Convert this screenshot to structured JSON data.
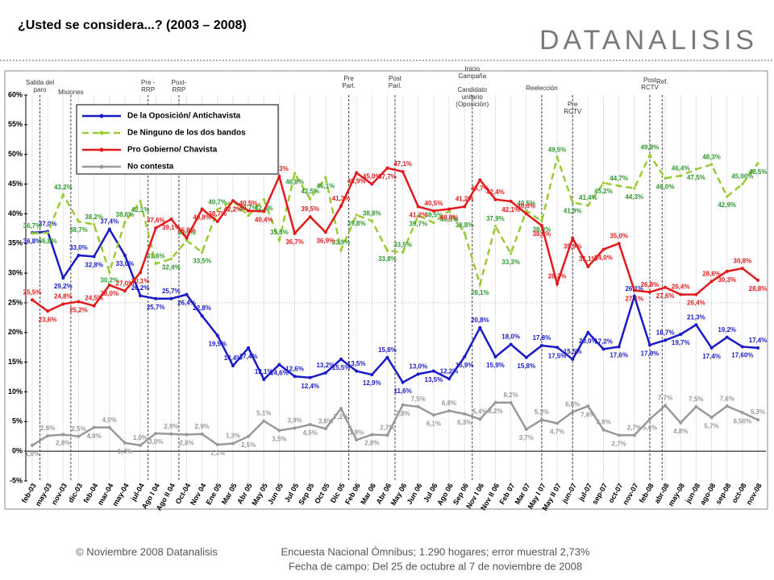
{
  "chart_data": {
    "type": "line",
    "title": "¿Usted se considera...? (2003 – 2008)",
    "logo": "DATANALISIS",
    "categories": [
      "feb-03",
      "may-03",
      "nov-03",
      "dic-03",
      "feb-04",
      "mar-04",
      "may-04",
      "jul-04",
      "Ago I 04",
      "Ago II 04",
      "Oct-04",
      "Nov 04",
      "Ene 05",
      "Mar 05",
      "Abr 05",
      "May 05",
      "Jun 05",
      "Jul 05",
      "Sep 05",
      "Oct 05",
      "Dic 05",
      "Feb 06",
      "Mar 06",
      "Abr 06",
      "May 06",
      "Jun 06",
      "Jul 06",
      "Ago 06",
      "Sep 06",
      "Nov I 06",
      "Nov II 06",
      "Feb 07",
      "Mar 07",
      "May I 07",
      "May II 07",
      "jun-07",
      "jul-07",
      "sep-07",
      "oct-07",
      "nov-07",
      "feb-08",
      "abr-08",
      "may-08",
      "jun-08",
      "ago-08",
      "sep-08",
      "oct-08",
      "nov-08"
    ],
    "ylim": [
      -5,
      60
    ],
    "yticks": [
      {
        "value": -5,
        "label": "-5%"
      },
      {
        "value": 0,
        "label": "0%"
      },
      {
        "value": 5,
        "label": "5%"
      },
      {
        "value": 10,
        "label": "10%"
      },
      {
        "value": 15,
        "label": "15%"
      },
      {
        "value": 20,
        "label": "20%"
      },
      {
        "value": 25,
        "label": "25%"
      },
      {
        "value": 30,
        "label": "30%"
      },
      {
        "value": 35,
        "label": "35%"
      },
      {
        "value": 40,
        "label": "40%"
      },
      {
        "value": 45,
        "label": "45%"
      },
      {
        "value": 50,
        "label": "50%"
      },
      {
        "value": 55,
        "label": "55%"
      },
      {
        "value": 60,
        "label": "60%"
      }
    ],
    "series": [
      {
        "name": "De la Oposición/ Antichavista",
        "color": "#1a1ac8",
        "dashed": false,
        "values": [
          36.8,
          37.0,
          29.2,
          33.0,
          32.8,
          37.4,
          33.0,
          26.2,
          25.7,
          25.7,
          26.4,
          22.8,
          19.5,
          14.4,
          17.4,
          12.1,
          14.6,
          12.6,
          12.4,
          13.2,
          15.5,
          13.5,
          12.9,
          15.8,
          11.6,
          13.0,
          13.5,
          12.2,
          15.9,
          20.8,
          15.9,
          18.0,
          15.8,
          17.8,
          17.5,
          15.5,
          20.0,
          17.2,
          17.6,
          26.1,
          17.9,
          18.7,
          19.7,
          21.3,
          17.4,
          19.2,
          17.6,
          17.4
        ],
        "value_labels": [
          "36,8%",
          "37,0%",
          "29,2%",
          "33,0%",
          "32,8%",
          "37,4%",
          "33,0%",
          "26,2%",
          "25,7%",
          "25,7%",
          "26,4%",
          "22,8%",
          "19,5%",
          "14,4%",
          "17,4%",
          "12,1%",
          "14,6%",
          "12,6%",
          "12,4%",
          "13,2%",
          "15,5%",
          "13,5%",
          "12,9%",
          "15,8%",
          "11,6%",
          "13,0%",
          "13,5%",
          "12,2%",
          "15,9%",
          "20,8%",
          "15,9%",
          "18,0%",
          "15,8%",
          "17,8%",
          "17,5%",
          "15,5%",
          "20,0%",
          "17,2%",
          "17,6%",
          "26,1%",
          "17,9%",
          "18,7%",
          "19,7%",
          "21,3%",
          "17,4%",
          "19,2%",
          "17,60%",
          "17,4%"
        ]
      },
      {
        "name": "De Ninguno de los dos bandos",
        "color": "#99cc33",
        "dashed": true,
        "values": [
          36.7,
          36.8,
          43.2,
          38.7,
          38.2,
          30.2,
          38.6,
          42.1,
          31.6,
          32.4,
          35.5,
          33.5,
          40.7,
          42.2,
          39.7,
          42.4,
          35.6,
          46.8,
          42.5,
          46.1,
          33.9,
          39.8,
          38.8,
          33.8,
          33.5,
          39.7,
          38.5,
          40.5,
          36.8,
          28.1,
          37.9,
          33.3,
          40.5,
          38.8,
          49.5,
          41.9,
          41.4,
          45.2,
          44.7,
          44.3,
          49.9,
          46.0,
          46.4,
          47.5,
          48.3,
          42.9,
          45.0,
          48.5
        ],
        "value_labels": [
          "36,7%",
          "36,8%",
          "43,2%",
          "38,7%",
          "38,2%",
          "30,2%",
          "38,6%",
          "42,1%",
          "31,6%",
          "32,4%",
          "35,5%",
          "33,5%",
          "40,7%",
          "42,2%",
          "39,7%",
          "42,4%",
          "35,6%",
          "46,8%",
          "42,5%",
          "46,1%",
          "33,9%",
          "39,8%",
          "38,8%",
          "33,8%",
          "33,5%",
          "39,7%",
          "38,5%",
          "40,5%",
          "36,8%",
          "28,1%",
          "37,9%",
          "33,3%",
          "40,5%",
          "38,8%",
          "49,5%",
          "41,9%",
          "41,4%",
          "45,2%",
          "44,7%",
          "44,3%",
          "49,9%",
          "46,0%",
          "46,4%",
          "47,5%",
          "48,3%",
          "42,9%",
          "45,00%",
          "48,5%"
        ]
      },
      {
        "name": "Pro Gobierno/ Chavista",
        "color": "#e31a1c",
        "dashed": false,
        "values": [
          25.5,
          23.6,
          24.8,
          25.2,
          24.5,
          28.0,
          27.0,
          30.1,
          37.6,
          39.1,
          35.9,
          40.8,
          38.7,
          42.2,
          40.5,
          40.4,
          46.3,
          36.7,
          39.5,
          36.9,
          41.3,
          46.9,
          45.0,
          47.7,
          47.1,
          41.2,
          40.5,
          40.8,
          41.2,
          45.7,
          42.4,
          42.1,
          40.0,
          38.0,
          28.2,
          35.9,
          31.1,
          34.0,
          35.0,
          27.1,
          26.8,
          27.6,
          26.4,
          26.4,
          28.6,
          30.3,
          30.8,
          28.8
        ],
        "value_labels": [
          "25,5%",
          "23,6%",
          "24,8%",
          "25,2%",
          "24,5%",
          "28,0%",
          "27,0%",
          "30,1%",
          "37,6%",
          "39,1%",
          "35,9%",
          "40,8%",
          "38,7%",
          "42,2%",
          "40,5%",
          "40,4%",
          "46,3%",
          "36,7%",
          "39,5%",
          "36,9%",
          "41,3%",
          "46,9%",
          "45,0%",
          "47,7%",
          "47,1%",
          "41,2%",
          "40,5%",
          "40,8%",
          "41,2%",
          "45,7%",
          "42,4%",
          "42,1%",
          "40,0%",
          "38,0%",
          "28,2%",
          "35,9%",
          "31,1%",
          "34,0%",
          "35,0%",
          "27,1%",
          "26,8%",
          "27,6%",
          "26,4%",
          "26,4%",
          "28,6%",
          "30,3%",
          "30,8%",
          "28,8%"
        ]
      },
      {
        "name": "No contesta",
        "color": "#999999",
        "dashed": false,
        "values": [
          1.0,
          2.6,
          2.8,
          2.5,
          4.0,
          4.0,
          1.4,
          1.0,
          3.0,
          2.9,
          2.8,
          2.9,
          1.1,
          1.3,
          2.5,
          5.1,
          3.5,
          3.9,
          4.5,
          3.8,
          7.2,
          1.9,
          2.8,
          2.7,
          7.8,
          7.5,
          6.1,
          6.8,
          6.3,
          5.4,
          8.2,
          8.2,
          3.7,
          5.3,
          4.7,
          6.6,
          7.6,
          3.6,
          2.7,
          2.7,
          5.4,
          7.7,
          4.8,
          7.5,
          5.7,
          7.6,
          6.5,
          5.3
        ],
        "value_labels": [
          "1,0%",
          "2,6%",
          "2,8%",
          "2,5%",
          "4,0%",
          "4,0%",
          "1,4%",
          "1,0%",
          "3,0%",
          "2,9%",
          "2,8%",
          "2,9%",
          "1,1%",
          "1,3%",
          "2,5%",
          "5,1%",
          "3,5%",
          "3,9%",
          "4,5%",
          "3,8%",
          "7,2%",
          "1,9%",
          "2,8%",
          "2,7%",
          "7,8%",
          "7,5%",
          "6,1%",
          "6,8%",
          "6,3%",
          "5,4%",
          "8,2%",
          "8,2%",
          "3,7%",
          "5,3%",
          "4,7%",
          "6,6%",
          "7,6%",
          "3,6%",
          "2,7%",
          "2,7%",
          "5,4%",
          "7,7%",
          "4,8%",
          "7,5%",
          "5,7%",
          "7,6%",
          "6,50%",
          "5,3%"
        ]
      }
    ],
    "annotations": [
      "Salida del paro",
      "Misiones",
      "Pre - RRP",
      "Post- RRP",
      "Pre Parl.",
      "Post Parl.",
      "Inicio Campaña",
      "Candidato unitario (Oposición)",
      "Reelección",
      "Pre RCTV",
      "Post RCTV",
      "Ref."
    ],
    "footer": {
      "copyright": "© Noviembre 2008  Datanalisis",
      "source": "Encuesta Nacional Ómnibus; 1.290 hogares; error muestral  2,73%",
      "fieldwork": "Fecha de campo: Del 25 de octubre al 7 de noviembre de 2008"
    }
  }
}
